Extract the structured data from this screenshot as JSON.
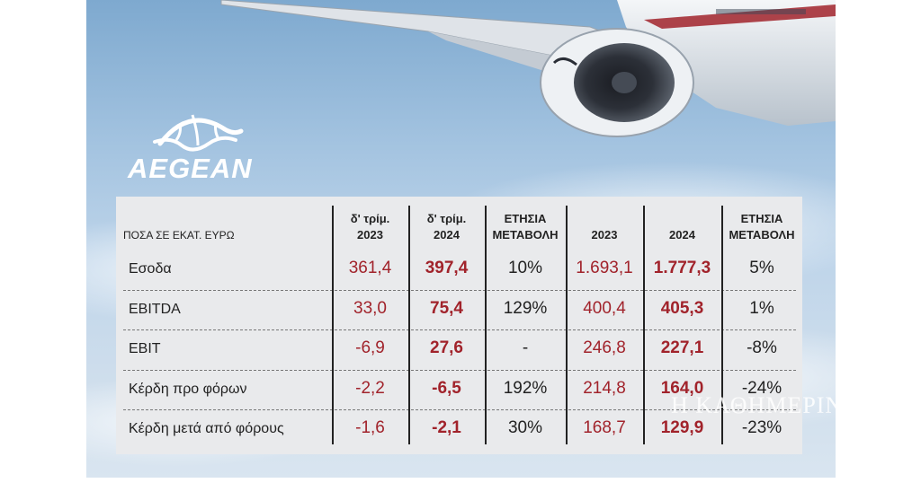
{
  "brand": {
    "logo_text": "AEGEAN",
    "watermark": "Η ΚΑΘΗΜΕΡΙΝΗ"
  },
  "colors": {
    "accent": "#a1232b",
    "table_bg": "#e9eaec",
    "sky_top": "#7ea9cf"
  },
  "chart_data": {
    "type": "table",
    "columns": [
      {
        "label_line1": "ΠΟΣΑ ΣΕ ΕΚΑΤ. ΕΥΡΩ",
        "label_line2": ""
      },
      {
        "label_line1": "δ' τρίμ.",
        "label_line2": "2023"
      },
      {
        "label_line1": "δ' τρίμ.",
        "label_line2": "2024"
      },
      {
        "label_line1": "ΕΤΗΣΙΑ",
        "label_line2": "ΜΕΤΑΒΟΛΗ"
      },
      {
        "label_line1": "2023",
        "label_line2": ""
      },
      {
        "label_line1": "2024",
        "label_line2": ""
      },
      {
        "label_line1": "ΕΤΗΣΙΑ",
        "label_line2": "ΜΕΤΑΒΟΛΗ"
      }
    ],
    "rows": [
      {
        "label": "Εσοδα",
        "values": [
          "361,4",
          "397,4",
          "10%",
          "1.693,1",
          "1.777,3",
          "5%"
        ]
      },
      {
        "label": "EBITDA",
        "values": [
          "33,0",
          "75,4",
          "129%",
          "400,4",
          "405,3",
          "1%"
        ]
      },
      {
        "label": "EBIT",
        "values": [
          "-6,9",
          "27,6",
          "-",
          "246,8",
          "227,1",
          "-8%"
        ]
      },
      {
        "label": "Κέρδη προ φόρων",
        "values": [
          "-2,2",
          "-6,5",
          "192%",
          "214,8",
          "164,0",
          "-24%"
        ]
      },
      {
        "label": "Κέρδη μετά από φόρους",
        "values": [
          "-1,6",
          "-2,1",
          "30%",
          "168,7",
          "129,9",
          "-23%"
        ]
      }
    ]
  }
}
